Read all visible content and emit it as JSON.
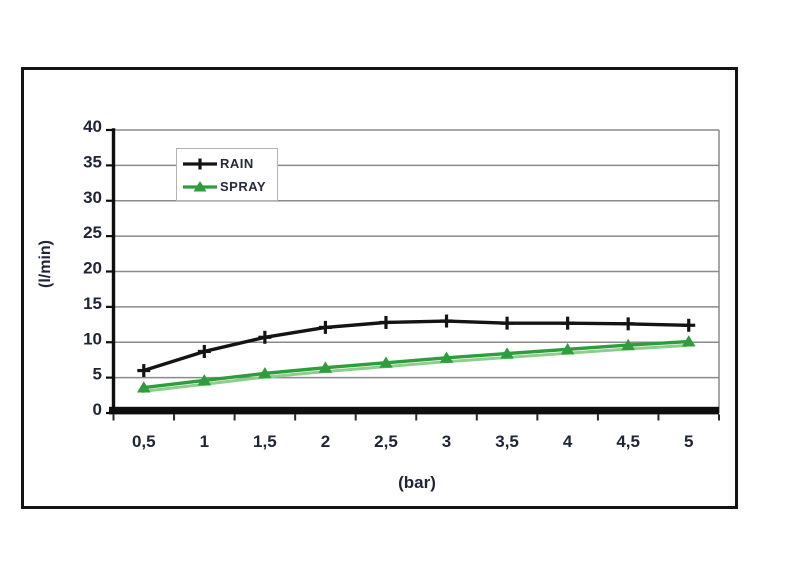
{
  "chart_data": {
    "type": "line",
    "title": "",
    "xlabel": "(bar)",
    "ylabel": "(l/min)",
    "x": [
      0.5,
      1,
      1.5,
      2,
      2.5,
      3,
      3.5,
      4,
      4.5,
      5
    ],
    "x_tick_labels": [
      "0,5",
      "1",
      "1,5",
      "2",
      "2,5",
      "3",
      "3,5",
      "4",
      "4,5",
      "5"
    ],
    "y_ticks": [
      0,
      5,
      10,
      15,
      20,
      25,
      30,
      35,
      40
    ],
    "y_tick_labels": [
      "0",
      "5",
      "10",
      "15",
      "20",
      "25",
      "30",
      "35",
      "40"
    ],
    "ylim": [
      0,
      40
    ],
    "grid": true,
    "legend": {
      "position": "top-left-inside",
      "entries": [
        "RAIN",
        "SPRAY"
      ]
    },
    "series": [
      {
        "name": "RAIN",
        "marker": "plus",
        "color": "#141414",
        "values": [
          6,
          8.7,
          10.7,
          12.1,
          12.8,
          13,
          12.7,
          12.7,
          12.6,
          12.4
        ]
      },
      {
        "name": "SPRAY",
        "marker": "triangle-up",
        "color": "#2e9e3c",
        "shadow_color": "#8ccf8c",
        "values": [
          3.6,
          4.6,
          5.6,
          6.4,
          7.1,
          7.8,
          8.4,
          9,
          9.6,
          10.1
        ]
      }
    ]
  },
  "colors": {
    "grid": "#8a8a8a",
    "axis": "#0e0e0e",
    "tick_text": "#1f2537",
    "frame": "#141414",
    "legend_border": "#b3b3b3"
  }
}
